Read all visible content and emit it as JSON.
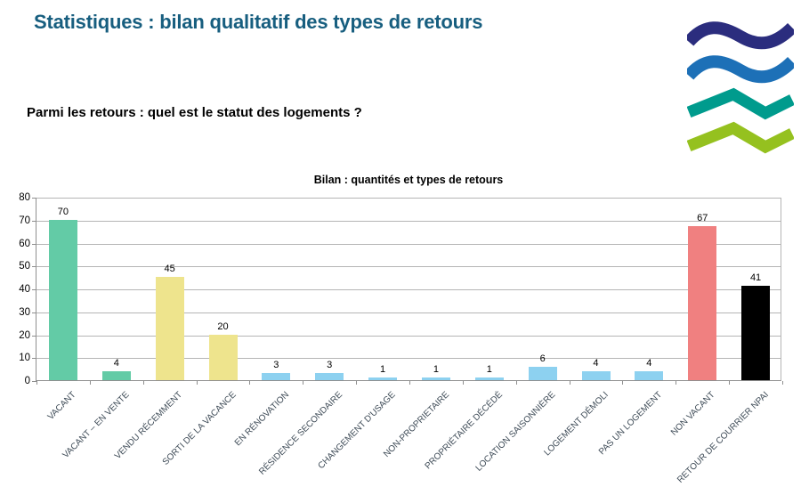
{
  "page": {
    "title": "Statistiques : bilan qualitatif des types de retours",
    "subtitle": "Parmi les retours : quel est le statut des logements ?",
    "title_color": "#175e7f"
  },
  "logo": {
    "description": "four-waves-logo",
    "colors": {
      "wave1": "#2b2d7e",
      "wave2": "#1d70b7",
      "wave3": "#009b8d",
      "wave4": "#95c11f"
    }
  },
  "chart_data": {
    "type": "bar",
    "title": "Bilan : quantités et types de retours",
    "categories": [
      "VACANT",
      "VACANT – EN VENTE",
      "VENDU RÉCEMMENT",
      "SORTI DE LA VACANCE",
      "EN RÉNOVATION",
      "RÉSIDENCE SECONDAIRE",
      "CHANGEMENT D'USAGE",
      "NON-PROPRIETAIRE",
      "PROPRIÉTAIRE DÉCÉDÉ",
      "LOCATION SAISONNIÈRE",
      "LOGEMENT DÉMOLI",
      "PAS UN LOGEMENT",
      "NON VACANT",
      "RETOUR DE COURRIER NPAI"
    ],
    "values": [
      70,
      4,
      45,
      20,
      3,
      3,
      1,
      1,
      1,
      6,
      4,
      4,
      67,
      41
    ],
    "bar_colors": [
      "#63cba6",
      "#63cba6",
      "#eee48d",
      "#eee48d",
      "#8dd1f0",
      "#8dd1f0",
      "#8dd1f0",
      "#8dd1f0",
      "#8dd1f0",
      "#8dd1f0",
      "#8dd1f0",
      "#8dd1f0",
      "#f08080",
      "#000000"
    ],
    "xlabel": "",
    "ylabel": "",
    "ylim": [
      0,
      80
    ],
    "yticks": [
      0,
      10,
      20,
      30,
      40,
      50,
      60,
      70,
      80
    ],
    "grid": true,
    "legend": "none",
    "value_labels": true
  }
}
